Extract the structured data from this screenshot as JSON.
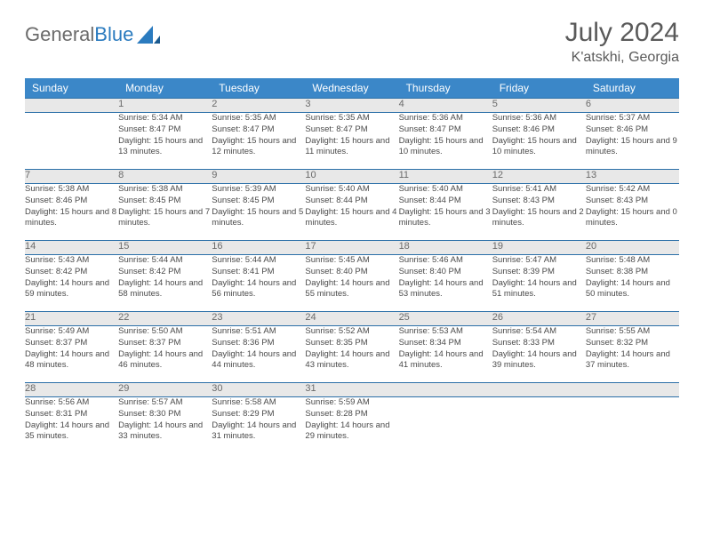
{
  "logo": {
    "text1": "General",
    "text2": "Blue"
  },
  "title": "July 2024",
  "location": "K'atskhi, Georgia",
  "colors": {
    "header_bg": "#3b87c8",
    "header_fg": "#ffffff",
    "row_divider": "#2b6fa8",
    "daynum_bg": "#e8e8e8",
    "text": "#4a4a4a",
    "logo_blue": "#2b7bbf"
  },
  "day_names": [
    "Sunday",
    "Monday",
    "Tuesday",
    "Wednesday",
    "Thursday",
    "Friday",
    "Saturday"
  ],
  "weeks": [
    [
      {
        "n": "",
        "d": ""
      },
      {
        "n": "1",
        "d": "Sunrise: 5:34 AM\nSunset: 8:47 PM\nDaylight: 15 hours and 13 minutes."
      },
      {
        "n": "2",
        "d": "Sunrise: 5:35 AM\nSunset: 8:47 PM\nDaylight: 15 hours and 12 minutes."
      },
      {
        "n": "3",
        "d": "Sunrise: 5:35 AM\nSunset: 8:47 PM\nDaylight: 15 hours and 11 minutes."
      },
      {
        "n": "4",
        "d": "Sunrise: 5:36 AM\nSunset: 8:47 PM\nDaylight: 15 hours and 10 minutes."
      },
      {
        "n": "5",
        "d": "Sunrise: 5:36 AM\nSunset: 8:46 PM\nDaylight: 15 hours and 10 minutes."
      },
      {
        "n": "6",
        "d": "Sunrise: 5:37 AM\nSunset: 8:46 PM\nDaylight: 15 hours and 9 minutes."
      }
    ],
    [
      {
        "n": "7",
        "d": "Sunrise: 5:38 AM\nSunset: 8:46 PM\nDaylight: 15 hours and 8 minutes."
      },
      {
        "n": "8",
        "d": "Sunrise: 5:38 AM\nSunset: 8:45 PM\nDaylight: 15 hours and 7 minutes."
      },
      {
        "n": "9",
        "d": "Sunrise: 5:39 AM\nSunset: 8:45 PM\nDaylight: 15 hours and 5 minutes."
      },
      {
        "n": "10",
        "d": "Sunrise: 5:40 AM\nSunset: 8:44 PM\nDaylight: 15 hours and 4 minutes."
      },
      {
        "n": "11",
        "d": "Sunrise: 5:40 AM\nSunset: 8:44 PM\nDaylight: 15 hours and 3 minutes."
      },
      {
        "n": "12",
        "d": "Sunrise: 5:41 AM\nSunset: 8:43 PM\nDaylight: 15 hours and 2 minutes."
      },
      {
        "n": "13",
        "d": "Sunrise: 5:42 AM\nSunset: 8:43 PM\nDaylight: 15 hours and 0 minutes."
      }
    ],
    [
      {
        "n": "14",
        "d": "Sunrise: 5:43 AM\nSunset: 8:42 PM\nDaylight: 14 hours and 59 minutes."
      },
      {
        "n": "15",
        "d": "Sunrise: 5:44 AM\nSunset: 8:42 PM\nDaylight: 14 hours and 58 minutes."
      },
      {
        "n": "16",
        "d": "Sunrise: 5:44 AM\nSunset: 8:41 PM\nDaylight: 14 hours and 56 minutes."
      },
      {
        "n": "17",
        "d": "Sunrise: 5:45 AM\nSunset: 8:40 PM\nDaylight: 14 hours and 55 minutes."
      },
      {
        "n": "18",
        "d": "Sunrise: 5:46 AM\nSunset: 8:40 PM\nDaylight: 14 hours and 53 minutes."
      },
      {
        "n": "19",
        "d": "Sunrise: 5:47 AM\nSunset: 8:39 PM\nDaylight: 14 hours and 51 minutes."
      },
      {
        "n": "20",
        "d": "Sunrise: 5:48 AM\nSunset: 8:38 PM\nDaylight: 14 hours and 50 minutes."
      }
    ],
    [
      {
        "n": "21",
        "d": "Sunrise: 5:49 AM\nSunset: 8:37 PM\nDaylight: 14 hours and 48 minutes."
      },
      {
        "n": "22",
        "d": "Sunrise: 5:50 AM\nSunset: 8:37 PM\nDaylight: 14 hours and 46 minutes."
      },
      {
        "n": "23",
        "d": "Sunrise: 5:51 AM\nSunset: 8:36 PM\nDaylight: 14 hours and 44 minutes."
      },
      {
        "n": "24",
        "d": "Sunrise: 5:52 AM\nSunset: 8:35 PM\nDaylight: 14 hours and 43 minutes."
      },
      {
        "n": "25",
        "d": "Sunrise: 5:53 AM\nSunset: 8:34 PM\nDaylight: 14 hours and 41 minutes."
      },
      {
        "n": "26",
        "d": "Sunrise: 5:54 AM\nSunset: 8:33 PM\nDaylight: 14 hours and 39 minutes."
      },
      {
        "n": "27",
        "d": "Sunrise: 5:55 AM\nSunset: 8:32 PM\nDaylight: 14 hours and 37 minutes."
      }
    ],
    [
      {
        "n": "28",
        "d": "Sunrise: 5:56 AM\nSunset: 8:31 PM\nDaylight: 14 hours and 35 minutes."
      },
      {
        "n": "29",
        "d": "Sunrise: 5:57 AM\nSunset: 8:30 PM\nDaylight: 14 hours and 33 minutes."
      },
      {
        "n": "30",
        "d": "Sunrise: 5:58 AM\nSunset: 8:29 PM\nDaylight: 14 hours and 31 minutes."
      },
      {
        "n": "31",
        "d": "Sunrise: 5:59 AM\nSunset: 8:28 PM\nDaylight: 14 hours and 29 minutes."
      },
      {
        "n": "",
        "d": ""
      },
      {
        "n": "",
        "d": ""
      },
      {
        "n": "",
        "d": ""
      }
    ]
  ]
}
